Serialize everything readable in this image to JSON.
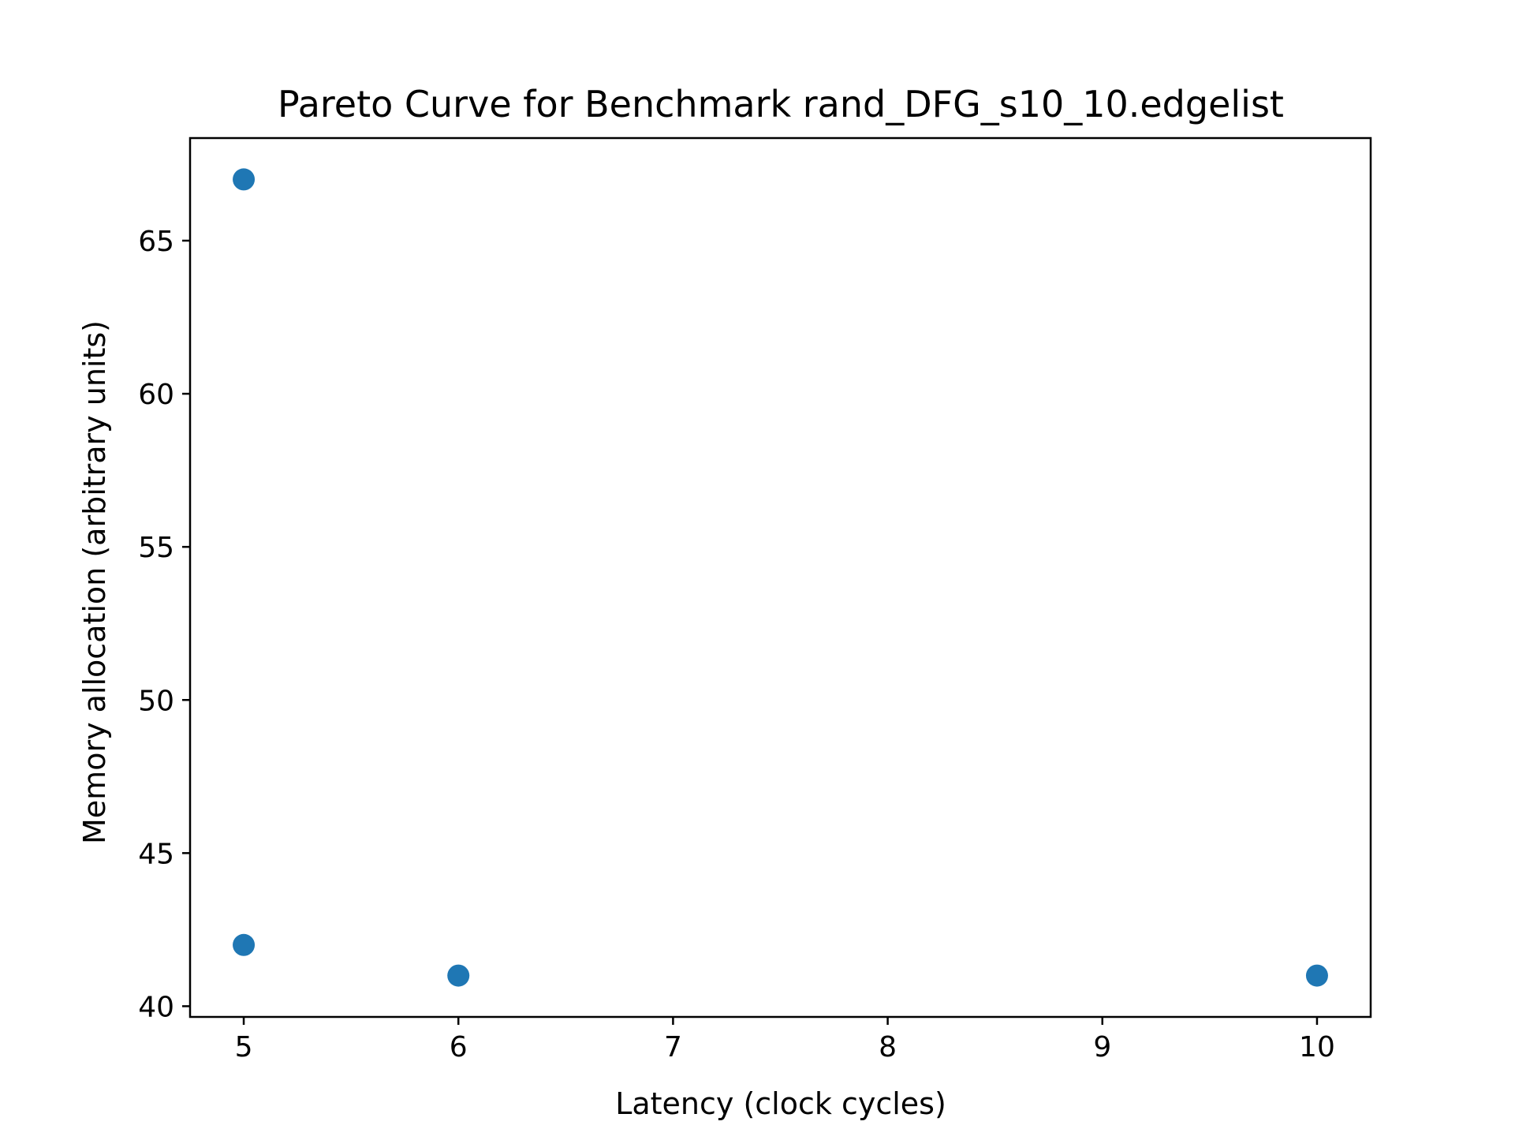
{
  "chart_data": {
    "type": "scatter",
    "title": "Pareto Curve for Benchmark rand_DFG_s10_10.edgelist",
    "xlabel": "Latency (clock cycles)",
    "ylabel": "Memory allocation (arbitrary units)",
    "x_ticks": [
      5,
      6,
      7,
      8,
      9,
      10
    ],
    "y_ticks": [
      40,
      45,
      50,
      55,
      60,
      65
    ],
    "xlim": [
      4.75,
      10.25
    ],
    "ylim": [
      39.65,
      68.35
    ],
    "grid": false,
    "series": [
      {
        "color": "#1f77b4",
        "points": [
          {
            "x": 5,
            "y": 67
          },
          {
            "x": 5,
            "y": 42
          },
          {
            "x": 6,
            "y": 41
          },
          {
            "x": 10,
            "y": 41
          }
        ]
      }
    ]
  }
}
